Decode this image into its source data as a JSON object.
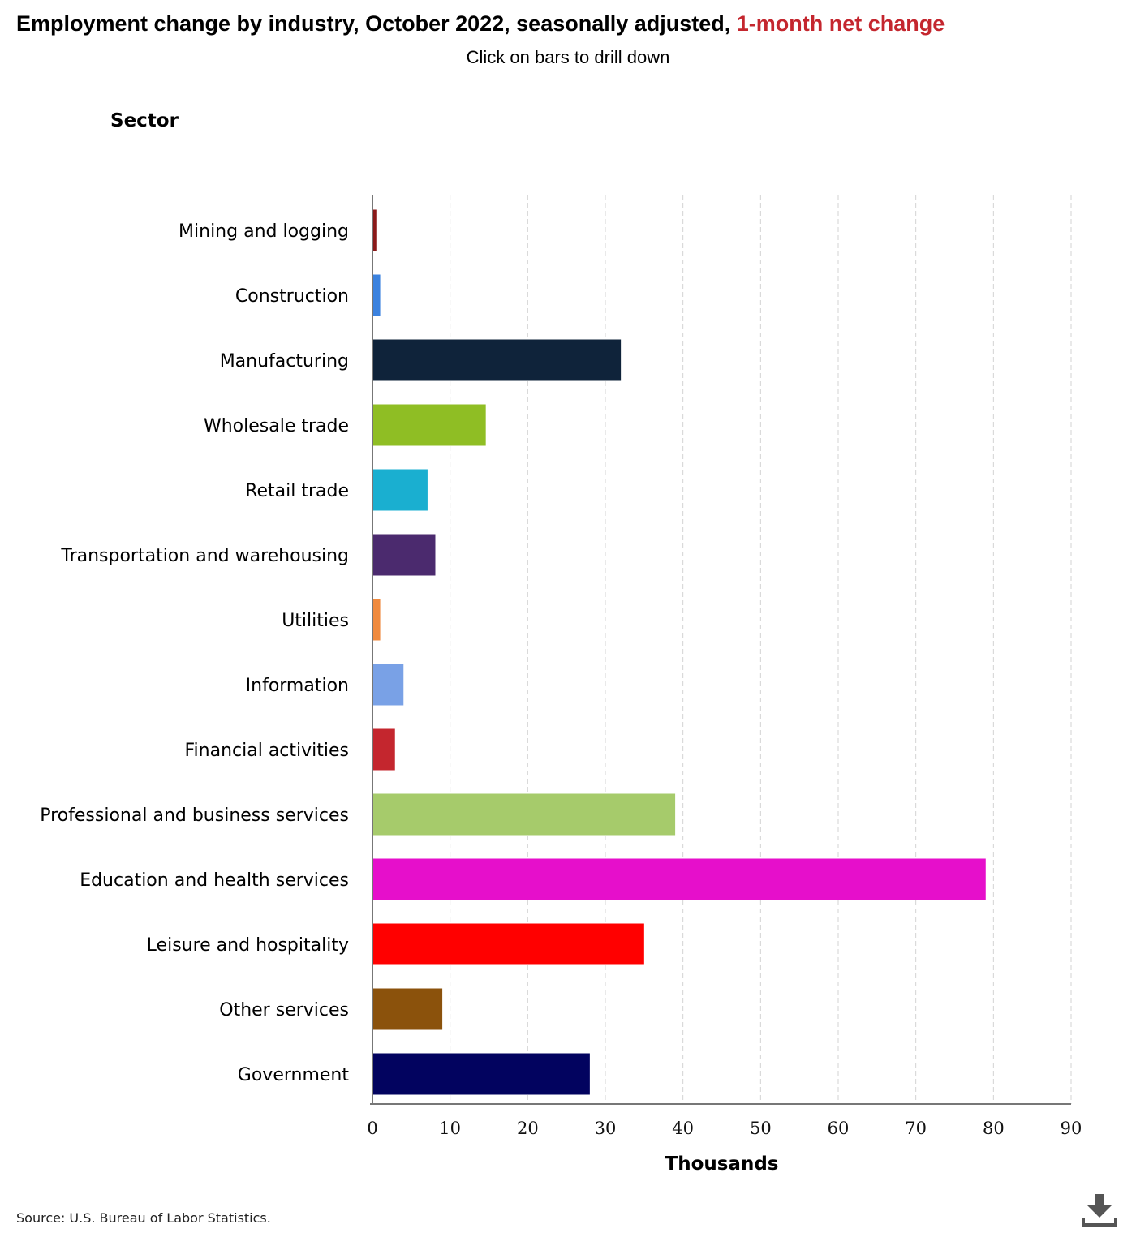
{
  "title_main": "Employment change by industry, October 2022, seasonally adjusted, ",
  "title_highlight": "1-month net change",
  "subtitle": "Click on bars to drill down",
  "source": "Source: U.S. Bureau of Labor Statistics.",
  "download_icon": "download-icon",
  "chart_data": {
    "type": "bar",
    "orientation": "horizontal",
    "title": "Employment change by industry, October 2022, seasonally adjusted, 1-month net change",
    "subtitle": "Click on bars to drill down",
    "ylabel": "Sector",
    "xlabel": "Thousands",
    "xlim": [
      0,
      90
    ],
    "xticks": [
      0,
      10,
      20,
      30,
      40,
      50,
      60,
      70,
      80,
      90
    ],
    "grid": "vertical dashed",
    "categories": [
      "Mining and logging",
      "Construction",
      "Manufacturing",
      "Wholesale trade",
      "Retail trade",
      "Transportation and warehousing",
      "Utilities",
      "Information",
      "Financial activities",
      "Professional and business services",
      "Education and health services",
      "Leisure and hospitality",
      "Other services",
      "Government"
    ],
    "values": [
      0.5,
      1,
      32,
      14.6,
      7.1,
      8.1,
      1,
      4,
      2.9,
      39,
      79,
      35,
      9,
      28
    ],
    "colors": [
      "#8b1a1a",
      "#3b82df",
      "#0f233a",
      "#8fbe24",
      "#1aafd0",
      "#4b2a6e",
      "#f08a3e",
      "#79a1e6",
      "#c4262e",
      "#a6cb6b",
      "#e60fcb",
      "#ff0000",
      "#8b520c",
      "#02035f"
    ]
  }
}
